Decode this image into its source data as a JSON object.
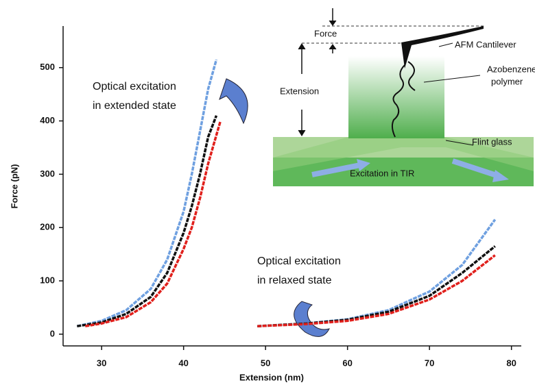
{
  "chart_data": {
    "type": "line",
    "x_label": "Extension (nm)",
    "y_label": "Force (pN)",
    "xlim": [
      25.3,
      81.2
    ],
    "ylim": [
      -22,
      578
    ],
    "xticks": [
      30,
      40,
      50,
      60,
      70,
      80
    ],
    "yticks": [
      0,
      100,
      200,
      300,
      400,
      500
    ],
    "series": [
      {
        "color": "#6fa0e0",
        "x": [
          27,
          30,
          33,
          36,
          38,
          40,
          41,
          42,
          43,
          44
        ],
        "values": [
          15,
          25,
          45,
          85,
          140,
          230,
          300,
          380,
          460,
          515
        ]
      },
      {
        "color": "#111111",
        "x": [
          27,
          30,
          33,
          36,
          38,
          40,
          41,
          42,
          43,
          44
        ],
        "values": [
          15,
          22,
          38,
          70,
          115,
          190,
          240,
          300,
          370,
          410
        ]
      },
      {
        "color": "#e0201c",
        "x": [
          28,
          30,
          33,
          36,
          38,
          40,
          41,
          42,
          43,
          44.5
        ],
        "values": [
          15,
          20,
          32,
          60,
          95,
          160,
          200,
          255,
          320,
          400
        ]
      },
      {
        "color": "#6fa0e0",
        "x": [
          49,
          55,
          60,
          65,
          70,
          74,
          78
        ],
        "values": [
          15,
          20,
          28,
          45,
          80,
          130,
          215
        ]
      },
      {
        "color": "#111111",
        "x": [
          49,
          55,
          60,
          65,
          70,
          74,
          78
        ],
        "values": [
          15,
          20,
          27,
          42,
          72,
          115,
          165
        ]
      },
      {
        "color": "#e0201c",
        "x": [
          49,
          55,
          60,
          65,
          70,
          74,
          78
        ],
        "values": [
          15,
          19,
          25,
          38,
          65,
          100,
          148
        ]
      }
    ],
    "annotations": [
      {
        "lines": [
          "Optical excitation",
          "in extended state"
        ]
      },
      {
        "lines": [
          "Optical excitation",
          "in relaxed state"
        ]
      }
    ],
    "inset": {
      "force": "Force",
      "extension": "Extension",
      "cantilever": "AFM Cantilever",
      "polymer": [
        "Azobenzene",
        "polymer"
      ],
      "glass": "Flint glass",
      "excitation": "Excitation in TIR"
    }
  }
}
